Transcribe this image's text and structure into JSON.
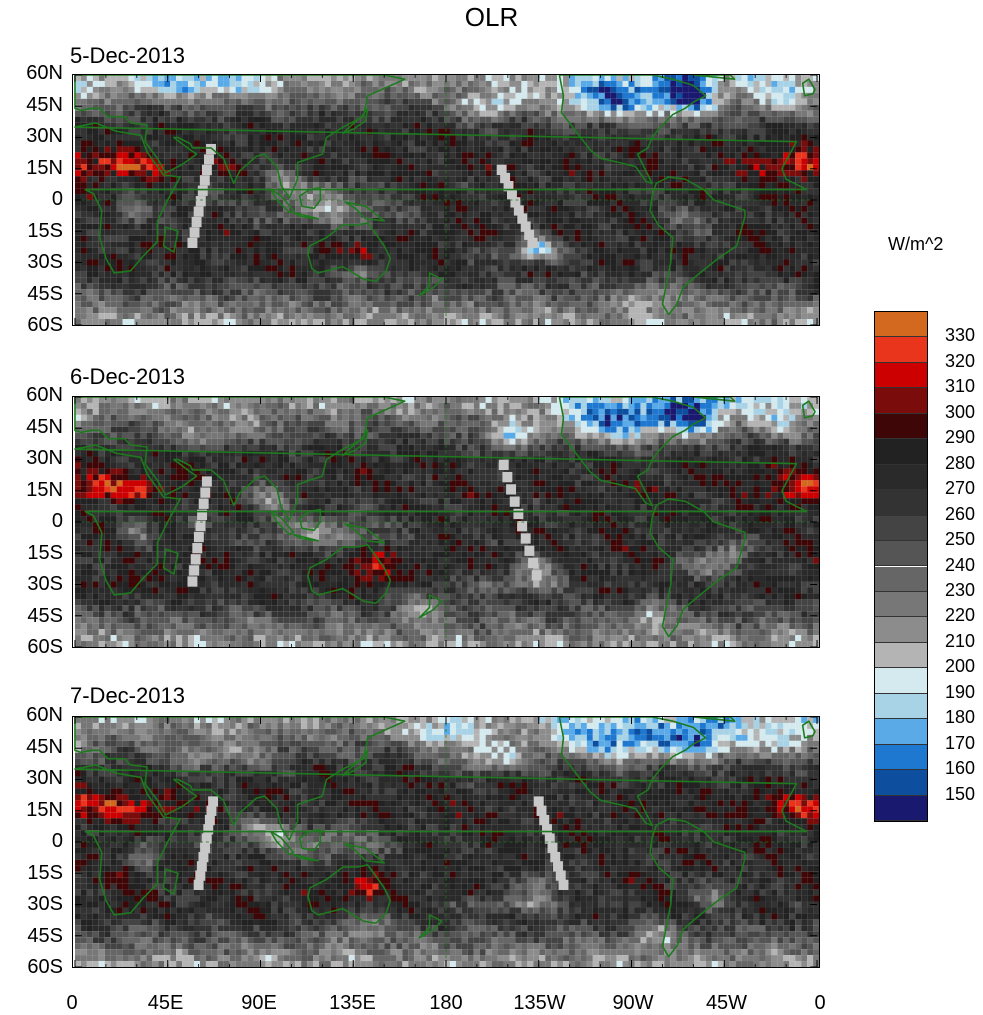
{
  "figure": {
    "title": "OLR",
    "units": "W/m^2"
  },
  "panels": [
    {
      "date": "5-Dec-2013"
    },
    {
      "date": "6-Dec-2013"
    },
    {
      "date": "7-Dec-2013"
    }
  ],
  "lat_ticks": [
    "60N",
    "45N",
    "30N",
    "15N",
    "0",
    "15S",
    "30S",
    "45S",
    "60S"
  ],
  "lon_ticks": [
    "0",
    "45E",
    "90E",
    "135E",
    "180",
    "135W",
    "90W",
    "45W",
    "0"
  ],
  "colorbar": {
    "levels": [
      "330",
      "320",
      "310",
      "300",
      "290",
      "280",
      "270",
      "260",
      "250",
      "240",
      "230",
      "220",
      "210",
      "200",
      "190",
      "180",
      "170",
      "160",
      "150"
    ],
    "colors": [
      "#d2691e",
      "#e8351b",
      "#cc0000",
      "#7a0c0c",
      "#3e0606",
      "#222222",
      "#2a2a2a",
      "#333333",
      "#444444",
      "#555555",
      "#666666",
      "#777777",
      "#8c8c8c",
      "#b4b4b4",
      "#d4eaee",
      "#a8d2e6",
      "#5aaae8",
      "#1f78cf",
      "#0d4f9e",
      "#191970"
    ]
  },
  "colors": {
    "coastline": "#1e7a1e",
    "missing": "#c8c8c8"
  }
}
